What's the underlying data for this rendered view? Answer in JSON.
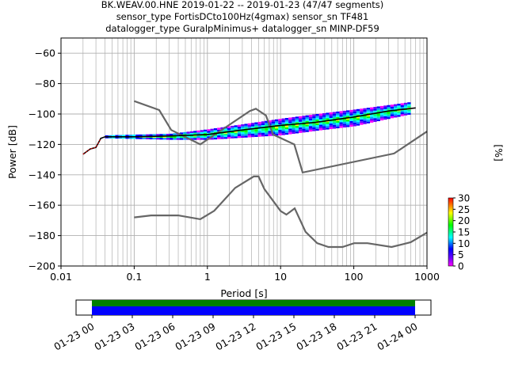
{
  "title_lines": [
    "BK.WEAV.00.HNE   2019-01-22 -- 2019-01-23  (47/47 segments)",
    "sensor_type FortisDCto100Hz(4gmax) sensor_sn TF481",
    "datalogger_type GuralpMinimus+ datalogger_sn MINP-DF59"
  ],
  "chart_data": {
    "type": "heatmap",
    "xlabel": "Period [s]",
    "ylabel": "Power [dB]",
    "xscale": "log",
    "xlim": [
      0.01,
      1000
    ],
    "ylim": [
      -200,
      -50
    ],
    "x_ticks": [
      0.01,
      0.1,
      1,
      10,
      100,
      1000
    ],
    "x_tick_labels": [
      "0.01",
      "0.1",
      "1",
      "10",
      "100",
      "1000"
    ],
    "y_ticks": [
      -200,
      -180,
      -160,
      -140,
      -120,
      -100,
      -80,
      -60
    ],
    "y_tick_labels": [
      "−200",
      "−180",
      "−160",
      "−140",
      "−120",
      "−100",
      "−80",
      "−60"
    ],
    "grid": true,
    "colorbar": {
      "label": "[%]",
      "range": [
        0,
        30
      ],
      "ticks": [
        0,
        5,
        10,
        15,
        20,
        25,
        30
      ],
      "tick_labels": [
        "0",
        "5",
        "10",
        "15",
        "20",
        "25",
        "30"
      ]
    },
    "noise_model_high": {
      "x": [
        0.1,
        0.22,
        0.32,
        0.8,
        3.8,
        4.6,
        6.3,
        7.9,
        15.4,
        20,
        354.8,
        1000
      ],
      "y": [
        -91.5,
        -97.4,
        -110.5,
        -120,
        -98,
        -96.5,
        -101,
        -113.5,
        -120,
        -138.5,
        -126,
        -111.5
      ]
    },
    "noise_model_low": {
      "x": [
        0.1,
        0.17,
        0.4,
        0.8,
        1.24,
        2.4,
        4.3,
        5.0,
        6.0,
        10,
        12,
        15.6,
        21.9,
        31.6,
        45,
        70,
        101,
        154,
        328,
        600,
        1000
      ],
      "y": [
        -168,
        -166.7,
        -166.7,
        -169.2,
        -163.7,
        -148.6,
        -141.1,
        -141.1,
        -149.4,
        -163.8,
        -166.2,
        -162.1,
        -177.5,
        -185,
        -187.5,
        -187.5,
        -185,
        -185,
        -187.5,
        -184.4,
        -178
      ]
    },
    "mean_curve": {
      "x": [
        0.02,
        0.025,
        0.03,
        0.035,
        0.04,
        0.1,
        0.3,
        1,
        3,
        10,
        30,
        100,
        300,
        700
      ],
      "y": [
        -126.5,
        -123,
        -122,
        -116,
        -115,
        -115,
        -114.5,
        -113.5,
        -110.5,
        -107.5,
        -105.5,
        -102,
        -98,
        -96
      ]
    },
    "psd_band": {
      "x": [
        0.04,
        0.3,
        1,
        10,
        30,
        100,
        300,
        600
      ],
      "y_high": [
        -114,
        -113,
        -110,
        -103,
        -100,
        -97,
        -94,
        -92
      ],
      "y_low": [
        -116,
        -117,
        -117,
        -114,
        -111,
        -108,
        -103,
        -100
      ]
    }
  },
  "timeline": {
    "tick_labels": [
      "01-23 00",
      "01-23 03",
      "01-23 06",
      "01-23 09",
      "01-23 12",
      "01-23 15",
      "01-23 18",
      "01-23 21",
      "01-24 00"
    ],
    "coverage_color": "#008000",
    "gap_free_color": "#0000ff"
  },
  "colors": {
    "noise_model": "#666666",
    "mean": "#000000",
    "grid": "#b0b0b0"
  }
}
